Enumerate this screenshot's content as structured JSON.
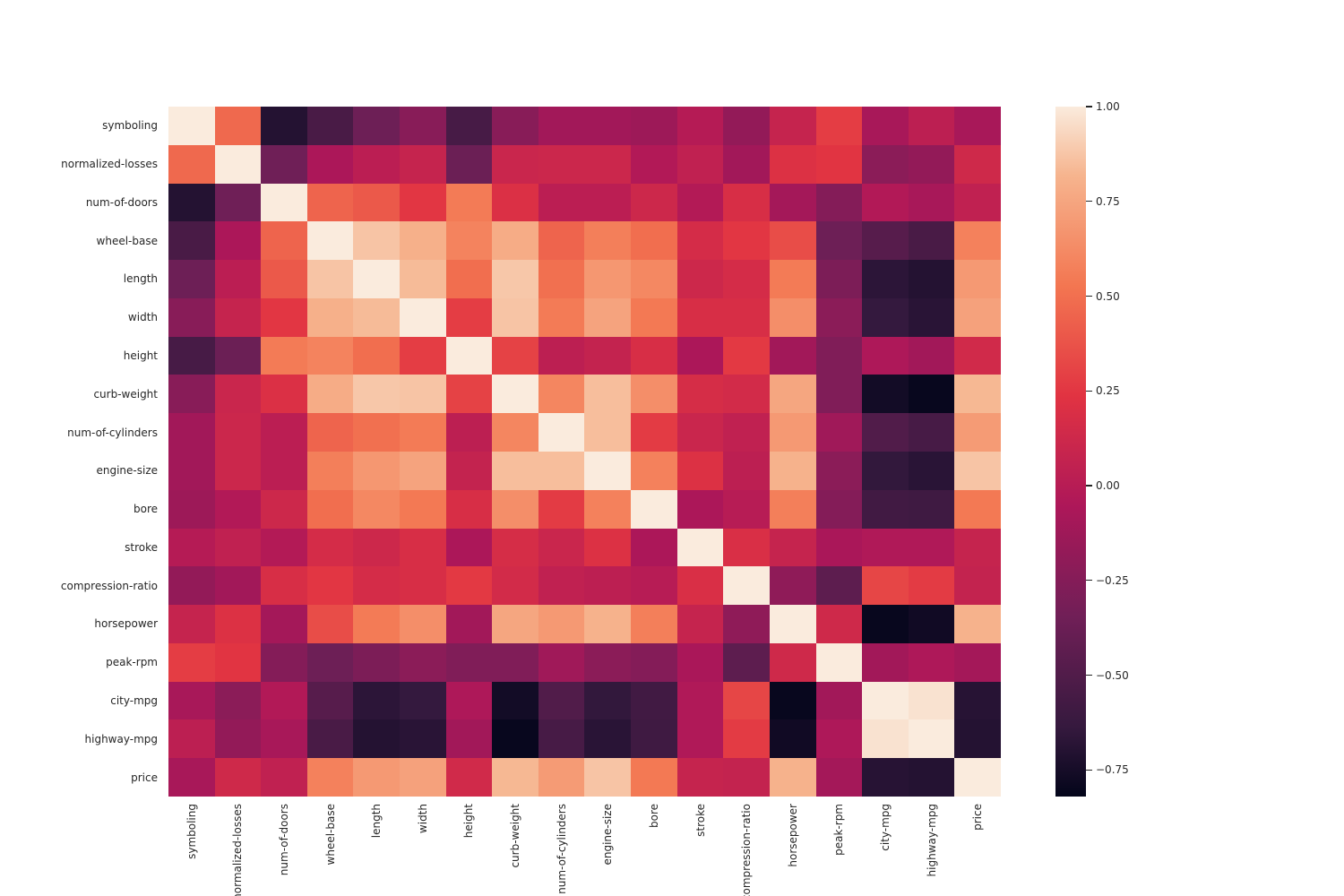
{
  "figure": {
    "background_color": "#ffffff"
  },
  "chart_data": {
    "type": "heatmap",
    "title": "",
    "xlabel": "",
    "ylabel": "",
    "categories": [
      "symboling",
      "normalized-losses",
      "num-of-doors",
      "wheel-base",
      "length",
      "width",
      "height",
      "curb-weight",
      "num-of-cylinders",
      "engine-size",
      "bore",
      "stroke",
      "compression-ratio",
      "horsepower",
      "peak-rpm",
      "city-mpg",
      "highway-mpg",
      "price"
    ],
    "matrix": [
      [
        1.0,
        0.47,
        -0.7,
        -0.54,
        -0.36,
        -0.23,
        -0.55,
        -0.23,
        -0.11,
        -0.11,
        -0.13,
        -0.01,
        -0.18,
        0.08,
        0.28,
        -0.08,
        0.03,
        -0.08
      ],
      [
        0.47,
        1.0,
        -0.35,
        -0.06,
        0.02,
        0.08,
        -0.37,
        0.1,
        0.11,
        0.11,
        -0.03,
        0.05,
        -0.11,
        0.21,
        0.24,
        -0.22,
        -0.18,
        0.13
      ],
      [
        -0.7,
        -0.35,
        1.0,
        0.45,
        0.4,
        0.25,
        0.55,
        0.2,
        0.02,
        0.02,
        0.12,
        -0.02,
        0.18,
        -0.1,
        -0.25,
        -0.03,
        -0.08,
        0.05
      ],
      [
        -0.54,
        -0.06,
        0.45,
        1.0,
        0.87,
        0.8,
        0.59,
        0.78,
        0.45,
        0.57,
        0.49,
        0.16,
        0.25,
        0.35,
        -0.36,
        -0.47,
        -0.54,
        0.58
      ],
      [
        -0.36,
        0.02,
        0.4,
        0.87,
        1.0,
        0.84,
        0.49,
        0.88,
        0.5,
        0.68,
        0.61,
        0.12,
        0.16,
        0.55,
        -0.29,
        -0.67,
        -0.7,
        0.69
      ],
      [
        -0.23,
        0.08,
        0.25,
        0.8,
        0.84,
        1.0,
        0.28,
        0.87,
        0.55,
        0.74,
        0.54,
        0.18,
        0.18,
        0.64,
        -0.22,
        -0.64,
        -0.68,
        0.73
      ],
      [
        -0.55,
        -0.37,
        0.55,
        0.59,
        0.49,
        0.28,
        1.0,
        0.3,
        0.03,
        0.07,
        0.18,
        -0.06,
        0.26,
        -0.11,
        -0.27,
        -0.05,
        -0.11,
        0.14
      ],
      [
        -0.23,
        0.1,
        0.2,
        0.78,
        0.88,
        0.87,
        0.3,
        1.0,
        0.6,
        0.85,
        0.64,
        0.17,
        0.15,
        0.75,
        -0.27,
        -0.76,
        -0.8,
        0.83
      ],
      [
        -0.11,
        0.11,
        0.02,
        0.45,
        0.5,
        0.55,
        0.03,
        0.6,
        1.0,
        0.85,
        0.27,
        0.1,
        0.05,
        0.69,
        -0.12,
        -0.5,
        -0.55,
        0.7
      ],
      [
        -0.11,
        0.11,
        0.02,
        0.57,
        0.68,
        0.74,
        0.07,
        0.85,
        0.85,
        1.0,
        0.58,
        0.21,
        0.03,
        0.81,
        -0.22,
        -0.65,
        -0.68,
        0.87
      ],
      [
        -0.13,
        -0.03,
        0.12,
        0.49,
        0.61,
        0.54,
        0.18,
        0.64,
        0.27,
        0.58,
        1.0,
        -0.06,
        0.0,
        0.57,
        -0.25,
        -0.58,
        -0.59,
        0.54
      ],
      [
        -0.01,
        0.05,
        -0.02,
        0.16,
        0.12,
        0.18,
        -0.06,
        0.17,
        0.1,
        0.21,
        -0.06,
        1.0,
        0.19,
        0.08,
        -0.07,
        -0.04,
        -0.04,
        0.08
      ],
      [
        -0.18,
        -0.11,
        0.18,
        0.25,
        0.16,
        0.18,
        0.26,
        0.15,
        0.05,
        0.03,
        0.0,
        0.19,
        1.0,
        -0.2,
        -0.44,
        0.32,
        0.27,
        0.07
      ],
      [
        0.08,
        0.21,
        -0.1,
        0.35,
        0.55,
        0.64,
        -0.11,
        0.75,
        0.69,
        0.81,
        0.57,
        0.08,
        -0.2,
        1.0,
        0.13,
        -0.8,
        -0.77,
        0.81
      ],
      [
        0.28,
        0.24,
        -0.25,
        -0.36,
        -0.29,
        -0.22,
        -0.27,
        -0.27,
        -0.12,
        -0.22,
        -0.25,
        -0.07,
        -0.44,
        0.13,
        1.0,
        -0.11,
        -0.05,
        -0.1
      ],
      [
        -0.08,
        -0.22,
        -0.03,
        -0.47,
        -0.67,
        -0.64,
        -0.05,
        -0.76,
        -0.5,
        -0.65,
        -0.58,
        -0.04,
        0.32,
        -0.8,
        -0.11,
        1.0,
        0.97,
        -0.69
      ],
      [
        0.03,
        -0.18,
        -0.08,
        -0.54,
        -0.7,
        -0.68,
        -0.11,
        -0.8,
        -0.55,
        -0.68,
        -0.59,
        -0.04,
        0.27,
        -0.77,
        -0.05,
        0.97,
        1.0,
        -0.7
      ],
      [
        -0.08,
        0.13,
        0.05,
        0.58,
        0.69,
        0.73,
        0.14,
        0.83,
        0.7,
        0.87,
        0.54,
        0.08,
        0.07,
        0.81,
        -0.1,
        -0.69,
        -0.7,
        1.0
      ]
    ],
    "vmin": -0.82,
    "vmax": 1.0,
    "grid": "off",
    "legend_position": "colorbar-right",
    "colormap": {
      "name": "rocket",
      "stops": [
        [
          0.0,
          "#03051A"
        ],
        [
          0.1,
          "#35193E"
        ],
        [
          0.26,
          "#701F57"
        ],
        [
          0.42,
          "#AD1759"
        ],
        [
          0.58,
          "#E13342"
        ],
        [
          0.74,
          "#F37651"
        ],
        [
          0.9,
          "#F6B48E"
        ],
        [
          1.0,
          "#FAEBDD"
        ]
      ]
    },
    "colorbar": {
      "tick_values": [
        1.0,
        0.75,
        0.5,
        0.25,
        0.0,
        -0.25,
        -0.5,
        -0.75
      ],
      "tick_labels": [
        "1.00",
        "0.75",
        "0.50",
        "0.25",
        "0.00",
        "−0.25",
        "−0.50",
        "−0.75"
      ]
    }
  }
}
